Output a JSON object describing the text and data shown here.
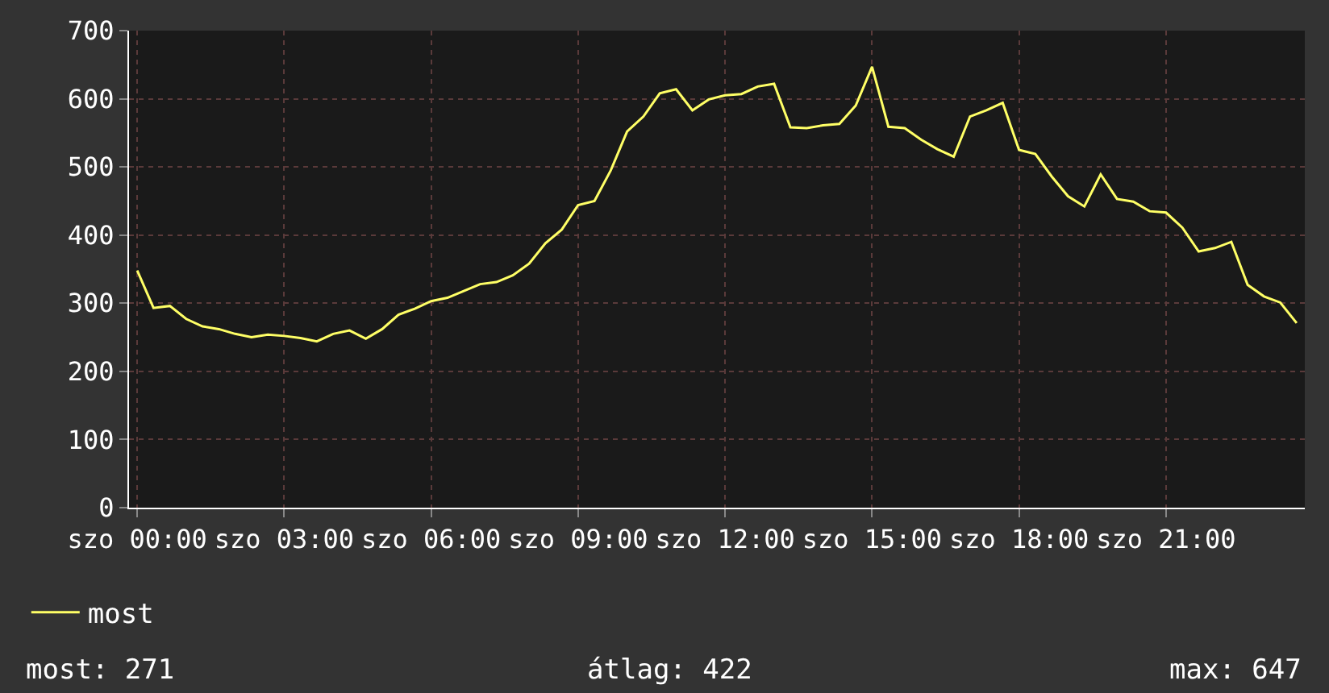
{
  "chart_data": {
    "type": "line",
    "categories": [
      "szo 00:00",
      null,
      null,
      null,
      null,
      null,
      null,
      null,
      null,
      "szo 03:00",
      null,
      null,
      null,
      null,
      null,
      null,
      null,
      null,
      "szo 06:00",
      null,
      null,
      null,
      null,
      null,
      null,
      null,
      null,
      "szo 09:00",
      null,
      null,
      null,
      null,
      null,
      null,
      null,
      null,
      "szo 12:00",
      null,
      null,
      null,
      null,
      null,
      null,
      null,
      null,
      "szo 15:00",
      null,
      null,
      null,
      null,
      null,
      null,
      null,
      null,
      "szo 18:00",
      null,
      null,
      null,
      null,
      null,
      null,
      null,
      null,
      "szo 21:00",
      null,
      null,
      null,
      null,
      null,
      null,
      null,
      null
    ],
    "series": [
      {
        "name": "most",
        "color": "#ffff66",
        "values": [
          348,
          293,
          296,
          277,
          266,
          262,
          255,
          250,
          254,
          252,
          249,
          244,
          255,
          260,
          248,
          262,
          283,
          292,
          303,
          308,
          318,
          328,
          331,
          341,
          358,
          388,
          408,
          444,
          450,
          495,
          552,
          574,
          608,
          614,
          583,
          599,
          605,
          607,
          618,
          622,
          558,
          557,
          561,
          563,
          590,
          647,
          559,
          557,
          540,
          526,
          515,
          574,
          583,
          594,
          525,
          519,
          486,
          457,
          442,
          489,
          453,
          449,
          435,
          433,
          411,
          376,
          381,
          390,
          327,
          310,
          301,
          271
        ]
      }
    ],
    "ylim": [
      0,
      700
    ],
    "yticks": [
      0,
      100,
      200,
      300,
      400,
      500,
      600,
      700
    ],
    "grid": true,
    "legend": "bottom left",
    "marker": "none",
    "line_style": "solid",
    "annotations": [
      "most: 271",
      "átlag: 422",
      "max: 647"
    ]
  }
}
